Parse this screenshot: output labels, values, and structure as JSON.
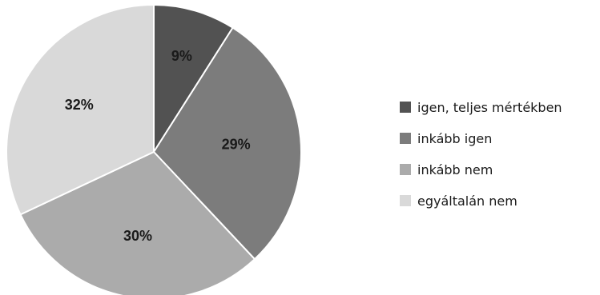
{
  "chart_data": {
    "type": "pie",
    "categories": [
      "igen, teljes mértékben",
      "inkább igen",
      "inkább nem",
      "egyáltalán nem"
    ],
    "values": [
      9,
      29,
      30,
      32
    ],
    "labels": [
      "9%",
      "29%",
      "30%",
      "32%"
    ],
    "colors": [
      "#525252",
      "#7c7c7c",
      "#ababab",
      "#d9d9d9"
    ],
    "legend_position": "right",
    "start_angle_deg": 0,
    "direction": "clockwise"
  }
}
